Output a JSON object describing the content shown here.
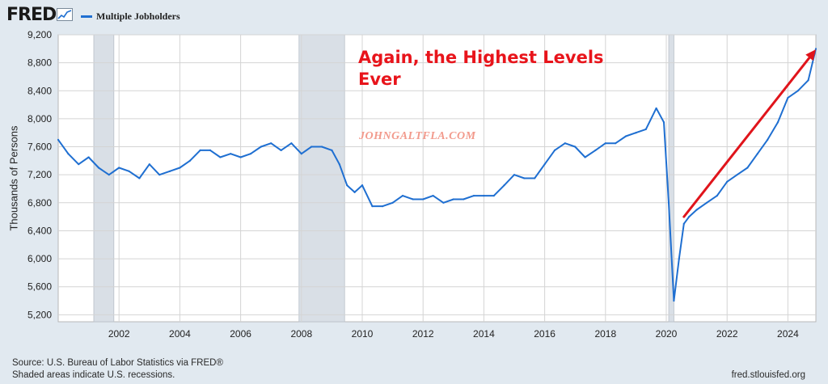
{
  "header": {
    "logo_text": "FRED",
    "legend_label": "Multiple Jobholders"
  },
  "annotations": {
    "headline": "Again, the Highest Levels Ever",
    "watermark": "JOHNGALTFLA.COM"
  },
  "footer": {
    "source": "Source: U.S. Bureau of Labor Statistics via FRED®",
    "recession_note": "Shaded areas indicate U.S. recessions.",
    "credit": "fred.stlouisfed.org"
  },
  "colors": {
    "line": "#1f6fd1",
    "recession": "#d9dfe6",
    "arrow": "#e0141b",
    "grid": "#d4d4d4"
  },
  "chart_data": {
    "type": "line",
    "title": "",
    "xlabel": "",
    "ylabel": "Thousands of Persons",
    "x_range": [
      2000.0,
      2024.92
    ],
    "ylim": [
      5100,
      9200
    ],
    "y_ticks": [
      5200,
      5600,
      6000,
      6400,
      6800,
      7200,
      7600,
      8000,
      8400,
      8800,
      9200
    ],
    "x_ticks": [
      2002,
      2004,
      2006,
      2008,
      2010,
      2012,
      2014,
      2016,
      2018,
      2020,
      2022,
      2024
    ],
    "grid": true,
    "recessions": [
      [
        2001.17,
        2001.83
      ],
      [
        2007.92,
        2009.42
      ],
      [
        2020.08,
        2020.25
      ]
    ],
    "series": [
      {
        "name": "Multiple Jobholders",
        "points": [
          [
            2000.0,
            7700
          ],
          [
            2000.33,
            7500
          ],
          [
            2000.67,
            7350
          ],
          [
            2001.0,
            7450
          ],
          [
            2001.33,
            7300
          ],
          [
            2001.67,
            7200
          ],
          [
            2002.0,
            7300
          ],
          [
            2002.33,
            7250
          ],
          [
            2002.67,
            7150
          ],
          [
            2003.0,
            7350
          ],
          [
            2003.33,
            7200
          ],
          [
            2003.67,
            7250
          ],
          [
            2004.0,
            7300
          ],
          [
            2004.33,
            7400
          ],
          [
            2004.67,
            7550
          ],
          [
            2005.0,
            7550
          ],
          [
            2005.33,
            7450
          ],
          [
            2005.67,
            7500
          ],
          [
            2006.0,
            7450
          ],
          [
            2006.33,
            7500
          ],
          [
            2006.67,
            7600
          ],
          [
            2007.0,
            7650
          ],
          [
            2007.33,
            7550
          ],
          [
            2007.67,
            7650
          ],
          [
            2008.0,
            7500
          ],
          [
            2008.33,
            7600
          ],
          [
            2008.67,
            7600
          ],
          [
            2009.0,
            7550
          ],
          [
            2009.25,
            7350
          ],
          [
            2009.5,
            7050
          ],
          [
            2009.75,
            6950
          ],
          [
            2010.0,
            7050
          ],
          [
            2010.33,
            6750
          ],
          [
            2010.67,
            6750
          ],
          [
            2011.0,
            6800
          ],
          [
            2011.33,
            6900
          ],
          [
            2011.67,
            6850
          ],
          [
            2012.0,
            6850
          ],
          [
            2012.33,
            6900
          ],
          [
            2012.67,
            6800
          ],
          [
            2013.0,
            6850
          ],
          [
            2013.33,
            6850
          ],
          [
            2013.67,
            6900
          ],
          [
            2014.0,
            6900
          ],
          [
            2014.33,
            6900
          ],
          [
            2014.67,
            7050
          ],
          [
            2015.0,
            7200
          ],
          [
            2015.33,
            7150
          ],
          [
            2015.67,
            7150
          ],
          [
            2016.0,
            7350
          ],
          [
            2016.33,
            7550
          ],
          [
            2016.67,
            7650
          ],
          [
            2017.0,
            7600
          ],
          [
            2017.33,
            7450
          ],
          [
            2017.67,
            7550
          ],
          [
            2018.0,
            7650
          ],
          [
            2018.33,
            7650
          ],
          [
            2018.67,
            7750
          ],
          [
            2019.0,
            7800
          ],
          [
            2019.33,
            7850
          ],
          [
            2019.67,
            8150
          ],
          [
            2019.92,
            7950
          ],
          [
            2020.08,
            6800
          ],
          [
            2020.25,
            5400
          ],
          [
            2020.42,
            6000
          ],
          [
            2020.58,
            6500
          ],
          [
            2020.75,
            6600
          ],
          [
            2021.0,
            6700
          ],
          [
            2021.33,
            6800
          ],
          [
            2021.67,
            6900
          ],
          [
            2022.0,
            7100
          ],
          [
            2022.33,
            7200
          ],
          [
            2022.67,
            7300
          ],
          [
            2023.0,
            7500
          ],
          [
            2023.33,
            7700
          ],
          [
            2023.67,
            7950
          ],
          [
            2024.0,
            8300
          ],
          [
            2024.33,
            8400
          ],
          [
            2024.67,
            8550
          ],
          [
            2024.92,
            9000
          ]
        ]
      }
    ],
    "trend_arrow": [
      [
        2020.58,
        6600
      ],
      [
        2024.92,
        8990
      ]
    ]
  }
}
